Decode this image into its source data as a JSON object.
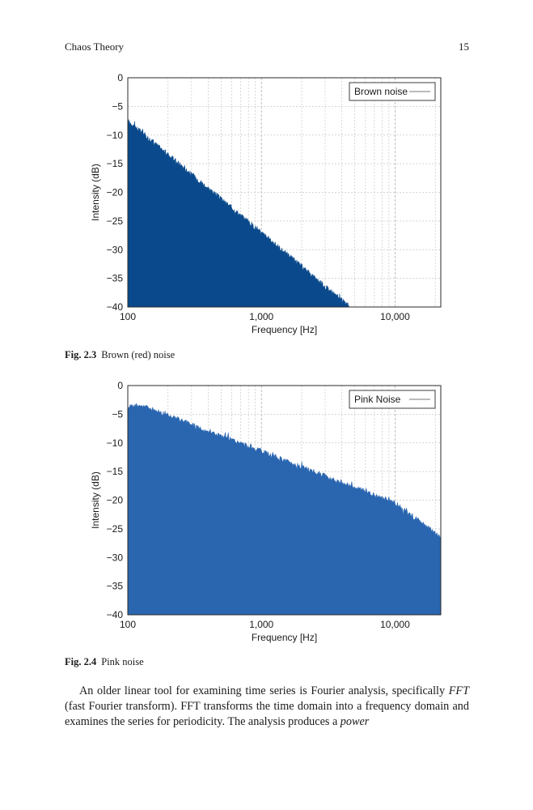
{
  "header": {
    "title": "Chaos Theory",
    "page_number": "15"
  },
  "figures": [
    {
      "caption_number": "Fig. 2.3",
      "caption_text": "Brown (red) noise",
      "chart_data": {
        "type": "area",
        "series": [
          {
            "name": "Brown noise",
            "color": "#0a4a8c"
          }
        ],
        "x": [
          100,
          4600
        ],
        "y": [
          -7.5,
          -40
        ],
        "xlabel": "Frequency [Hz]",
        "ylabel": "Intensity (dB)",
        "xscale": "log",
        "xlim": [
          100,
          22000
        ],
        "ylim": [
          -40,
          0
        ],
        "xticks": [
          100,
          1000,
          10000
        ],
        "xtick_labels": [
          "100",
          "1,000",
          "10,000"
        ],
        "yticks": [
          0,
          -5,
          -10,
          -15,
          -20,
          -25,
          -30,
          -35,
          -40
        ],
        "ytick_labels": [
          "0",
          "−5",
          "−10",
          "−15",
          "−20",
          "−25",
          "−30",
          "−35",
          "−40"
        ],
        "grid": true,
        "legend": "top-right"
      }
    },
    {
      "caption_number": "Fig. 2.4",
      "caption_text": "Pink noise",
      "chart_data": {
        "type": "area",
        "series": [
          {
            "name": "Pink Noise",
            "color": "#2a66b0"
          }
        ],
        "x": [
          100,
          130,
          1000,
          10000,
          22000
        ],
        "y": [
          -3.5,
          -3.5,
          -11.5,
          -20.5,
          -26.5
        ],
        "xlabel": "Frequency [Hz]",
        "ylabel": "Intensity (dB)",
        "xscale": "log",
        "xlim": [
          100,
          22000
        ],
        "ylim": [
          -40,
          0
        ],
        "xticks": [
          100,
          1000,
          10000
        ],
        "xtick_labels": [
          "100",
          "1,000",
          "10,000"
        ],
        "yticks": [
          0,
          -5,
          -10,
          -15,
          -20,
          -25,
          -30,
          -35,
          -40
        ],
        "ytick_labels": [
          "0",
          "−5",
          "−10",
          "−15",
          "−20",
          "−25",
          "−30",
          "−35",
          "−40"
        ],
        "grid": true,
        "legend": "top-right"
      }
    }
  ],
  "body": {
    "lead": "An older linear tool for examining time series is Fourier analysis, specifically ",
    "term1": "FFT",
    "mid": " (fast Fourier transform). FFT transforms the time domain into a frequency domain and examines the series for periodicity. The analysis produces a ",
    "term2": "power"
  }
}
